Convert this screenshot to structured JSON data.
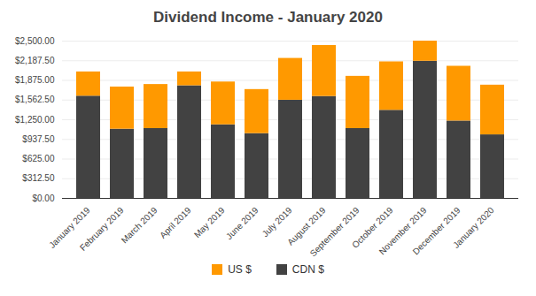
{
  "chart_data": {
    "type": "bar",
    "title": "Dividend Income - January 2020",
    "categories": [
      "January 2019",
      "February 2019",
      "March 2019",
      "April 2019",
      "May 2019",
      "June 2019",
      "July 2019",
      "August 2019",
      "September 2019",
      "October 2019",
      "November 2019",
      "December 2019",
      "January 2020"
    ],
    "series": [
      {
        "name": "US $",
        "color": "#ff9900",
        "values": [
          385,
          670,
          700,
          220,
          680,
          700,
          665,
          810,
          830,
          770,
          320,
          870,
          790
        ]
      },
      {
        "name": "CDN $",
        "color": "#424242",
        "values": [
          1625,
          1100,
          1110,
          1790,
          1170,
          1030,
          1560,
          1620,
          1110,
          1400,
          2180,
          1230,
          1010
        ]
      }
    ],
    "stacked": true,
    "ylim": [
      0,
      2500
    ],
    "yticks": [
      {
        "value": 0,
        "label": "$0.00"
      },
      {
        "value": 312.5,
        "label": "$312.50"
      },
      {
        "value": 625,
        "label": "$625.00"
      },
      {
        "value": 937.5,
        "label": "$937.50"
      },
      {
        "value": 1250,
        "label": "$1,250.00"
      },
      {
        "value": 1562.5,
        "label": "$1,562.50"
      },
      {
        "value": 1875,
        "label": "$1,875.00"
      },
      {
        "value": 2187.5,
        "label": "$2,187.50"
      },
      {
        "value": 2500,
        "label": "$2,500.00"
      }
    ],
    "grid": true,
    "legend": "bottom"
  }
}
